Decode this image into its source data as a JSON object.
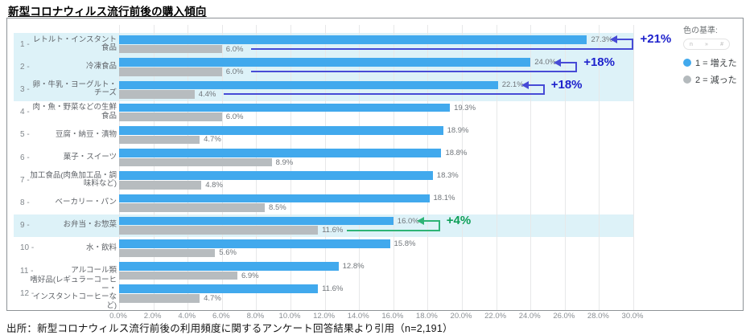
{
  "title": "新型コロナウィルス流行前後の購入傾向",
  "source_note": "出所：新型コロナウィルス流行前後の利用頻度に関するアンケート回答結果より引用（n=2,191）",
  "legend": {
    "heading": "色の基準:",
    "chip_left": "n",
    "chip_mid": "»",
    "chip_right": "#",
    "items": [
      {
        "label": "1 = 増えた",
        "color": "#41a9ed"
      },
      {
        "label": "2 = 減った",
        "color": "#b4babd"
      }
    ]
  },
  "chart_data": {
    "type": "bar",
    "orientation": "horizontal",
    "title": "新型コロナウィルス流行前後の購入傾向",
    "xlim": [
      0,
      30
    ],
    "x_tick_labels": [
      "0.0%",
      "2.0%",
      "4.0%",
      "6.0%",
      "8.0%",
      "10.0%",
      "12.0%",
      "14.0%",
      "16.0%",
      "18.0%",
      "20.0%",
      "22.0%",
      "24.0%",
      "26.0%",
      "28.0%",
      "30.0%"
    ],
    "grid": true,
    "legend_position": "right",
    "rank_labels": [
      "1 -",
      "2 -",
      "3 -",
      "4 -",
      "5 -",
      "6 -",
      "7 -",
      "8 -",
      "9 -",
      "10 -",
      "11 -",
      "12 -"
    ],
    "categories": [
      "レトルト・インスタント食品",
      "冷凍食品",
      "卵・牛乳・ヨーグルト・チーズ",
      "肉・魚・野菜などの生鮮食品",
      "豆腐・納豆・漬物",
      "菓子・スイーツ",
      "加工食品(肉魚加工品・調\n味料など)",
      "ベーカリー・パン",
      "お弁当・お惣菜",
      "水・飲料",
      "アルコール類",
      "嗜好品(レギュラーコーヒー・\nインスタントコーヒーなど)"
    ],
    "series": [
      {
        "name": "1 = 増えた",
        "color": "#41a9ed",
        "values": [
          27.3,
          24.0,
          22.1,
          19.3,
          18.9,
          18.8,
          18.3,
          18.1,
          16.0,
          15.8,
          12.8,
          11.6
        ],
        "labels": [
          "27.3%",
          "24.0%",
          "22.1%",
          "19.3%",
          "18.9%",
          "18.8%",
          "18.3%",
          "18.1%",
          "16.0%",
          "15.8%",
          "12.8%",
          "11.6%"
        ]
      },
      {
        "name": "2 = 減った",
        "color": "#b7bcbf",
        "values": [
          6.0,
          6.0,
          4.4,
          6.0,
          4.7,
          8.9,
          4.8,
          8.5,
          11.6,
          5.6,
          6.9,
          4.7
        ],
        "labels": [
          "6.0%",
          "6.0%",
          "4.4%",
          "6.0%",
          "4.7%",
          "8.9%",
          "4.8%",
          "8.5%",
          "11.6%",
          "5.6%",
          "6.9%",
          "4.7%"
        ]
      }
    ],
    "highlighted_rows": [
      1,
      2,
      3,
      9
    ],
    "annotations": [
      {
        "row": 1,
        "text": "+21%",
        "color": "blue"
      },
      {
        "row": 2,
        "text": "+18%",
        "color": "blue"
      },
      {
        "row": 3,
        "text": "+18%",
        "color": "blue"
      },
      {
        "row": 9,
        "text": "+4%",
        "color": "green"
      }
    ],
    "annotation_colors": {
      "blue": {
        "text": "#1e22cc",
        "line": "#474bd6"
      },
      "green": {
        "text": "#0d9f57",
        "line": "#2eb476"
      }
    }
  }
}
